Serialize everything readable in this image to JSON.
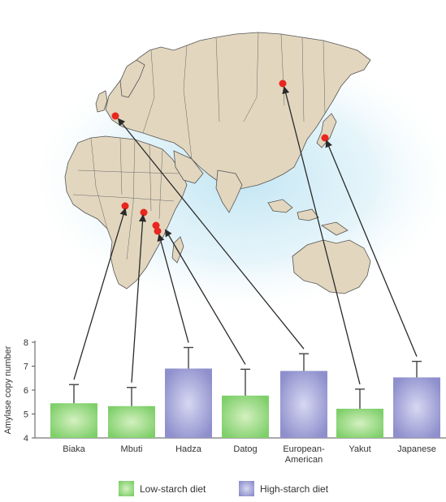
{
  "chart_data": {
    "type": "bar",
    "ylabel": "Amylase copy number",
    "ylim": [
      4,
      8
    ],
    "yticks": [
      "4",
      "5",
      "6",
      "7",
      "8"
    ],
    "categories": [
      {
        "label": [
          "Biaka"
        ],
        "value": 5.45,
        "err": 0.78,
        "diet": "low"
      },
      {
        "label": [
          "Mbuti"
        ],
        "value": 5.33,
        "err": 0.78,
        "diet": "low"
      },
      {
        "label": [
          "Hadza"
        ],
        "value": 6.9,
        "err": 0.88,
        "diet": "high"
      },
      {
        "label": [
          "Datog"
        ],
        "value": 5.77,
        "err": 1.1,
        "diet": "low"
      },
      {
        "label": [
          "European-",
          "American"
        ],
        "value": 6.8,
        "err": 0.72,
        "diet": "high"
      },
      {
        "label": [
          "Yakut"
        ],
        "value": 5.22,
        "err": 0.82,
        "diet": "low"
      },
      {
        "label": [
          "Japanese"
        ],
        "value": 6.53,
        "err": 0.67,
        "diet": "high"
      }
    ],
    "legend": [
      {
        "key": "low",
        "label": "Low-starch diet"
      },
      {
        "key": "high",
        "label": "High-starch diet"
      }
    ],
    "colors": {
      "low_center": "#d4f0c0",
      "low_edge": "#7fcf6a",
      "high_center": "#d6d8f2",
      "high_edge": "#8e8fcc",
      "land": "#e2d6be",
      "border": "#555555",
      "ocean": "#cfe9f4",
      "dot": "#e8271f",
      "arrow": "#2a2a2a",
      "error_bar": "#444444"
    }
  }
}
